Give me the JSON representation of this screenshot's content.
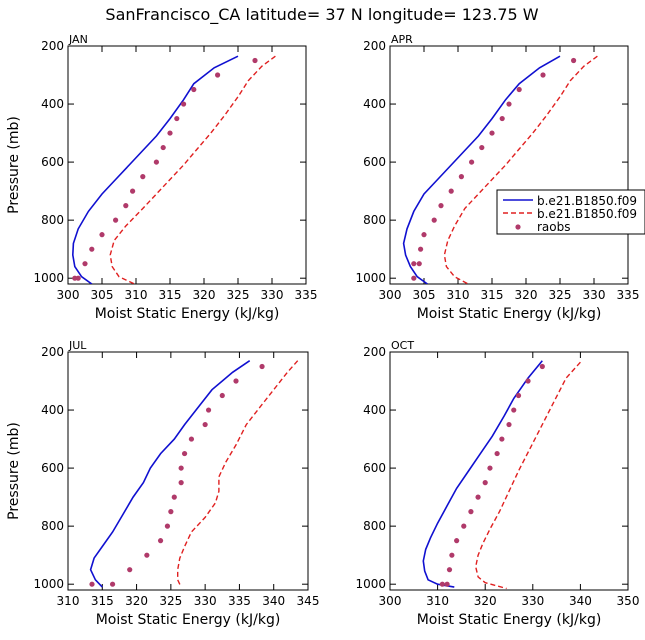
{
  "title": "SanFrancisco_CA  latitude= 37 N longitude= 123.75 W",
  "colors": {
    "model1": "#1010d0",
    "model2": "#e02020",
    "raobs": "#b03a6a"
  },
  "legend": {
    "entries": [
      "b.e21.B1850.f09",
      "b.e21.B1850.f09",
      "raobs"
    ]
  },
  "chart_data": [
    {
      "type": "line",
      "panel": "JAN",
      "xlabel": "Moist Static Energy (kJ/kg)",
      "ylabel": "Pressure (mb)",
      "xlim": [
        300,
        335
      ],
      "ylim": [
        1020,
        200
      ],
      "xticks": [
        300,
        305,
        310,
        315,
        320,
        325,
        330,
        335
      ],
      "yticks": [
        200,
        400,
        600,
        800,
        1000
      ],
      "series": [
        {
          "style": "solid",
          "color": "#1010d0",
          "x": [
            325.0,
            321.5,
            318.5,
            317.0,
            315.0,
            313.0,
            311.0,
            309.0,
            307.0,
            305.0,
            303.0,
            301.5,
            300.8,
            300.7,
            301.0,
            302.0,
            303.5
          ],
          "y": [
            235,
            275,
            330,
            385,
            450,
            510,
            560,
            610,
            660,
            710,
            770,
            830,
            880,
            920,
            960,
            995,
            1020
          ]
        },
        {
          "style": "dashed",
          "color": "#e02020",
          "x": [
            330.5,
            328.5,
            326.5,
            325.0,
            323.0,
            321.0,
            319.0,
            317.0,
            315.0,
            313.0,
            311.0,
            308.5,
            306.8,
            306.2,
            306.5,
            307.5,
            309.8
          ],
          "y": [
            235,
            270,
            320,
            375,
            440,
            500,
            555,
            610,
            660,
            710,
            760,
            820,
            870,
            920,
            960,
            995,
            1020
          ]
        },
        {
          "style": "points",
          "color": "#b03a6a",
          "x": [
            327.5,
            322.0,
            318.5,
            317.0,
            316.0,
            315.0,
            314.0,
            313.0,
            311.0,
            309.5,
            308.5,
            307.0,
            305.0,
            303.5,
            302.5,
            301.5,
            301.0
          ],
          "y": [
            250,
            300,
            350,
            400,
            450,
            500,
            550,
            600,
            650,
            700,
            750,
            800,
            850,
            900,
            950,
            1000,
            1000
          ]
        }
      ]
    },
    {
      "type": "line",
      "panel": "APR",
      "xlabel": "Moist Static Energy (kJ/kg)",
      "ylabel": "",
      "xlim": [
        300,
        335
      ],
      "ylim": [
        1020,
        200
      ],
      "xticks": [
        300,
        305,
        310,
        315,
        320,
        325,
        330,
        335
      ],
      "yticks": [
        200,
        400,
        600,
        800,
        1000
      ],
      "series": [
        {
          "style": "solid",
          "color": "#1010d0",
          "x": [
            325.0,
            322.0,
            319.0,
            317.0,
            315.0,
            313.0,
            311.0,
            309.0,
            307.0,
            305.0,
            303.5,
            302.5,
            302.0,
            302.3,
            303.0,
            304.0,
            305.5
          ],
          "y": [
            235,
            275,
            330,
            385,
            450,
            510,
            560,
            610,
            660,
            710,
            770,
            830,
            880,
            920,
            960,
            995,
            1020
          ]
        },
        {
          "style": "dashed",
          "color": "#e02020",
          "x": [
            330.5,
            328.5,
            326.5,
            325.0,
            323.0,
            321.0,
            319.0,
            317.0,
            315.0,
            313.0,
            311.0,
            309.5,
            308.5,
            308.0,
            308.3,
            309.5,
            311.5
          ],
          "y": [
            235,
            270,
            320,
            375,
            440,
            500,
            555,
            610,
            660,
            710,
            760,
            820,
            870,
            920,
            960,
            995,
            1020
          ]
        },
        {
          "style": "points",
          "color": "#b03a6a",
          "x": [
            327.0,
            322.5,
            319.0,
            317.5,
            316.5,
            315.0,
            313.5,
            312.0,
            310.5,
            309.0,
            307.5,
            306.5,
            305.0,
            304.5,
            304.3,
            303.5,
            303.5
          ],
          "y": [
            250,
            300,
            350,
            400,
            450,
            500,
            550,
            600,
            650,
            700,
            750,
            800,
            850,
            900,
            950,
            950,
            1000
          ]
        }
      ]
    },
    {
      "type": "line",
      "panel": "JUL",
      "xlabel": "Moist Static Energy (kJ/kg)",
      "ylabel": "Pressure (mb)",
      "xlim": [
        310,
        345
      ],
      "ylim": [
        1020,
        200
      ],
      "xticks": [
        310,
        315,
        320,
        325,
        330,
        335,
        340,
        345
      ],
      "yticks": [
        200,
        400,
        600,
        800,
        1000
      ],
      "series": [
        {
          "style": "solid",
          "color": "#1010d0",
          "x": [
            336.5,
            334.0,
            331.0,
            329.0,
            327.0,
            325.5,
            323.5,
            322.0,
            321.0,
            319.5,
            318.0,
            316.5,
            315.0,
            313.8,
            313.3,
            314.0,
            315.0
          ],
          "y": [
            230,
            270,
            330,
            390,
            450,
            500,
            550,
            600,
            650,
            700,
            760,
            820,
            870,
            910,
            950,
            985,
            1010
          ]
        },
        {
          "style": "dashed",
          "color": "#e02020",
          "x": [
            343.5,
            342.0,
            340.0,
            338.0,
            336.0,
            334.5,
            333.0,
            332.0,
            332.0,
            331.5,
            330.0,
            328.0,
            327.0,
            326.3,
            326.0,
            326.0,
            326.5
          ],
          "y": [
            230,
            270,
            330,
            390,
            450,
            520,
            580,
            630,
            680,
            720,
            770,
            820,
            870,
            910,
            950,
            985,
            1010
          ]
        },
        {
          "style": "points",
          "color": "#b03a6a",
          "x": [
            338.3,
            334.5,
            332.5,
            330.5,
            330.0,
            328.0,
            327.0,
            326.5,
            326.5,
            325.5,
            325.0,
            324.5,
            323.5,
            321.5,
            319.0,
            316.5,
            313.5
          ],
          "y": [
            250,
            300,
            350,
            400,
            450,
            500,
            550,
            600,
            650,
            700,
            750,
            800,
            850,
            900,
            950,
            1000,
            1000
          ]
        }
      ]
    },
    {
      "type": "line",
      "panel": "OCT",
      "xlabel": "Moist Static Energy (kJ/kg)",
      "ylabel": "",
      "xlim": [
        300,
        350
      ],
      "ylim": [
        1020,
        200
      ],
      "xticks": [
        300,
        310,
        320,
        330,
        340,
        350
      ],
      "yticks": [
        200,
        400,
        600,
        800,
        1000
      ],
      "series": [
        {
          "style": "solid",
          "color": "#1010d0",
          "x": [
            332.0,
            329.0,
            326.0,
            324.0,
            321.5,
            319.0,
            316.5,
            314.0,
            312.0,
            310.0,
            308.5,
            307.5,
            307.0,
            307.3,
            308.0,
            310.0,
            313.5
          ],
          "y": [
            230,
            290,
            360,
            420,
            490,
            550,
            610,
            670,
            730,
            790,
            840,
            880,
            920,
            955,
            985,
            1000,
            1010
          ]
        },
        {
          "style": "dashed",
          "color": "#e02020",
          "x": [
            340.0,
            337.0,
            334.5,
            332.0,
            329.5,
            327.0,
            325.0,
            323.0,
            321.0,
            319.5,
            318.5,
            318.0,
            318.5,
            320.0,
            324.5
          ],
          "y": [
            235,
            290,
            370,
            450,
            530,
            610,
            680,
            750,
            810,
            860,
            900,
            940,
            975,
            995,
            1015
          ]
        },
        {
          "style": "points",
          "color": "#b03a6a",
          "x": [
            332.0,
            329.0,
            327.0,
            326.0,
            325.0,
            323.5,
            322.5,
            321.0,
            320.0,
            318.5,
            317.0,
            315.5,
            314.0,
            313.0,
            312.5,
            312.0,
            311.0
          ],
          "y": [
            250,
            300,
            350,
            400,
            450,
            500,
            550,
            600,
            650,
            700,
            750,
            800,
            850,
            900,
            950,
            1000,
            1000
          ]
        }
      ]
    }
  ]
}
